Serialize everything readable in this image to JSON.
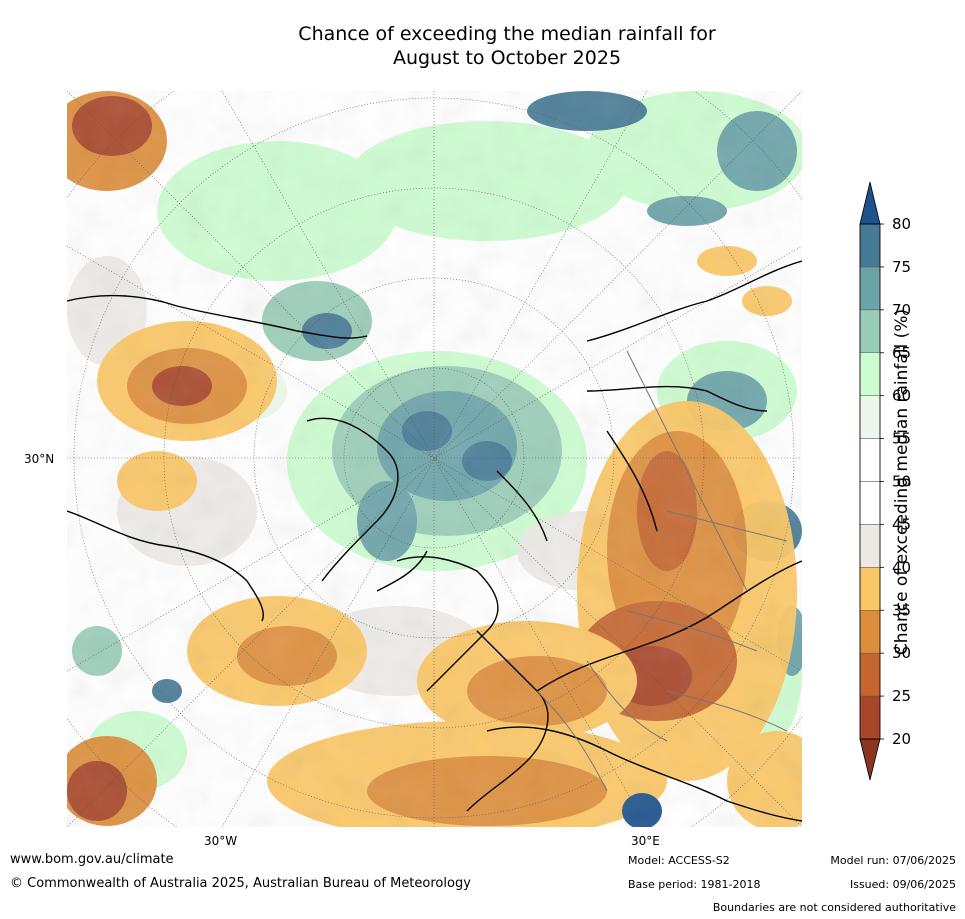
{
  "title_line1": "Chance of exceeding the median rainfall for",
  "title_line2": "August to October 2025",
  "axis_labels": {
    "lat_30n": "30°N",
    "lon_30w": "30°W",
    "lon_30e": "30°E"
  },
  "colorbar": {
    "label": "Chance of exceeding median rainfall (%)",
    "ticks": [
      "20",
      "25",
      "30",
      "35",
      "40",
      "45",
      "50",
      "55",
      "60",
      "65",
      "70",
      "75",
      "80"
    ],
    "colors": [
      "#a8462a",
      "#c5662f",
      "#dd8e3c",
      "#fbc766",
      "#ece9e5",
      "#ffffff",
      "#ffffff",
      "#edf8ec",
      "#ccfcd0",
      "#99cdb7",
      "#6ba3a8",
      "#477a95"
    ],
    "under_color": "#8b3520",
    "over_color": "#1d528c"
  },
  "footer": {
    "url": "www.bom.gov.au/climate",
    "copyright": "© Commonwealth of Australia 2025, Australian Bureau of Meteorology",
    "model": "Model: ACCESS-S2",
    "base_period": "Base period: 1981-2018",
    "model_run": "Model run: 07/06/2025",
    "issued": "Issued: 09/06/2025",
    "disclaimer": "Boundaries are not considered authoritative"
  }
}
